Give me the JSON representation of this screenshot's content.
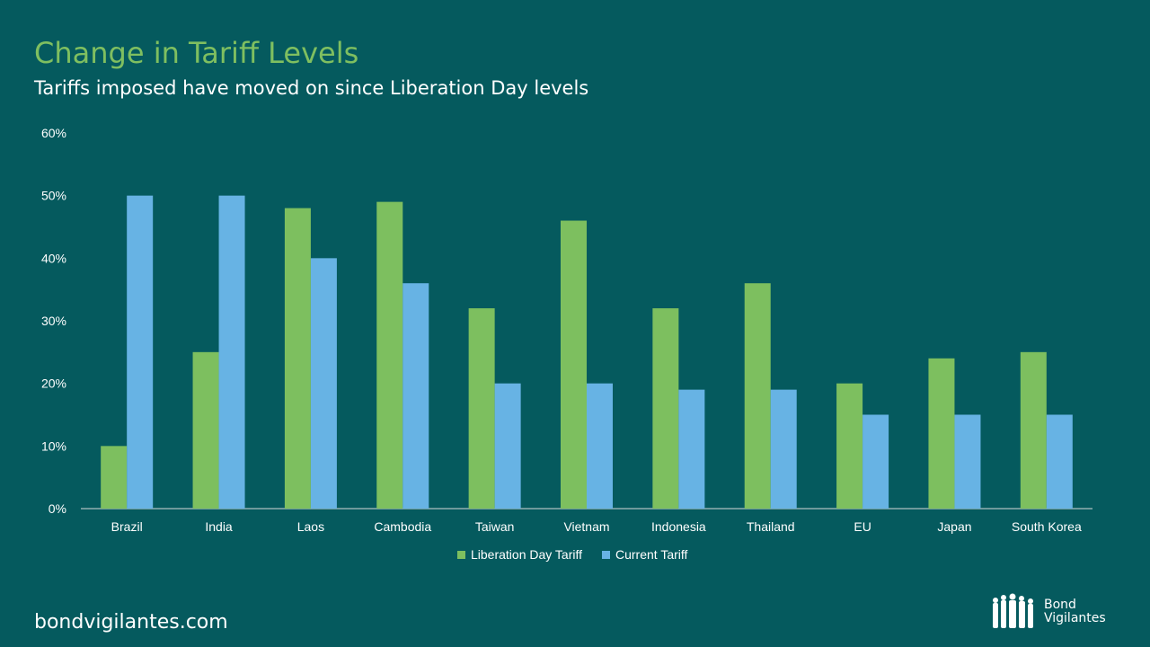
{
  "title": "Change in Tariff Levels",
  "subtitle": "Tariffs imposed have moved on since Liberation Day levels",
  "footer": "bondvigilantes.com",
  "logo": {
    "line1": "Bond",
    "line2": "Vigilantes"
  },
  "colors": {
    "background": "#055a5e",
    "green": "#7dbf5f",
    "blue": "#67b3e4"
  },
  "chart_data": {
    "type": "bar",
    "categories": [
      "Brazil",
      "India",
      "Laos",
      "Cambodia",
      "Taiwan",
      "Vietnam",
      "Indonesia",
      "Thailand",
      "EU",
      "Japan",
      "South Korea"
    ],
    "series": [
      {
        "name": "Liberation Day Tariff",
        "color": "#7dbf5f",
        "values": [
          10,
          25,
          48,
          49,
          32,
          46,
          32,
          36,
          20,
          24,
          25
        ]
      },
      {
        "name": "Current Tariff",
        "color": "#67b3e4",
        "values": [
          50,
          50,
          40,
          36,
          20,
          20,
          19,
          19,
          15,
          15,
          15
        ]
      }
    ],
    "ylim": [
      0,
      60
    ],
    "yticks": [
      "0%",
      "10%",
      "20%",
      "30%",
      "40%",
      "50%",
      "60%"
    ],
    "legend": "bottom",
    "grid": false
  }
}
